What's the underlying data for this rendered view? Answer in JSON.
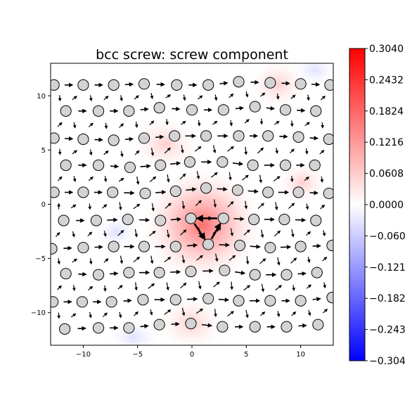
{
  "chart_data": {
    "type": "scatter",
    "title": "bcc screw: screw component",
    "xlabel": "",
    "ylabel": "",
    "xlim": [
      -13,
      13
    ],
    "ylim": [
      -13,
      13
    ],
    "x_ticks": [
      "−10",
      "−5",
      "0",
      "5",
      "10"
    ],
    "x_tick_values": [
      -10,
      -5,
      0,
      5,
      10
    ],
    "y_ticks": [
      "10",
      "5",
      "0",
      "−5",
      "−10"
    ],
    "y_tick_values": [
      10,
      5,
      0,
      -5,
      -10
    ],
    "colorbar": {
      "cmap": "bwr",
      "min": -0.304,
      "max": 0.304,
      "tick_labels": [
        "0.3040",
        "0.2432",
        "0.1824",
        "0.1216",
        "0.0608",
        "0.0000",
        "−0.0608",
        "−0.1216",
        "−0.1824",
        "−0.2432",
        "−0.3040"
      ],
      "tick_values": [
        0.304,
        0.2432,
        0.1824,
        0.1216,
        0.0608,
        0.0,
        -0.0608,
        -0.1216,
        -0.1824,
        -0.2432,
        -0.304
      ],
      "colors": {
        "low": "#0000ff",
        "mid": "#ffffff",
        "high": "#ff0000"
      }
    },
    "atoms": {
      "marker_color": "#d3d3d3",
      "edge_color": "#000000",
      "points": [
        [
          -12.7,
          11.0
        ],
        [
          -10.0,
          11.0
        ],
        [
          -7.2,
          11.0
        ],
        [
          -4.4,
          11.1
        ],
        [
          -1.4,
          11.0
        ],
        [
          1.5,
          11.0
        ],
        [
          4.3,
          11.3
        ],
        [
          7.2,
          11.2
        ],
        [
          10.0,
          11.1
        ],
        [
          12.7,
          11.0
        ],
        [
          -11.6,
          8.6
        ],
        [
          -8.6,
          8.6
        ],
        [
          -5.8,
          8.6
        ],
        [
          -3.0,
          8.9
        ],
        [
          0.0,
          8.7
        ],
        [
          2.9,
          8.7
        ],
        [
          5.8,
          9.0
        ],
        [
          8.6,
          8.7
        ],
        [
          11.4,
          8.6
        ],
        [
          -12.7,
          6.1
        ],
        [
          -10.0,
          6.0
        ],
        [
          -7.2,
          5.9
        ],
        [
          -4.4,
          6.1
        ],
        [
          -1.6,
          6.3
        ],
        [
          1.3,
          6.3
        ],
        [
          4.3,
          6.3
        ],
        [
          7.0,
          6.3
        ],
        [
          9.8,
          6.2
        ],
        [
          12.6,
          6.0
        ],
        [
          -11.6,
          3.6
        ],
        [
          -8.6,
          3.6
        ],
        [
          -5.7,
          3.4
        ],
        [
          -2.9,
          3.6
        ],
        [
          -0.2,
          3.9
        ],
        [
          2.8,
          3.9
        ],
        [
          5.6,
          3.6
        ],
        [
          8.6,
          3.6
        ],
        [
          11.3,
          3.6
        ],
        [
          -12.7,
          1.1
        ],
        [
          -10.0,
          1.1
        ],
        [
          -7.3,
          1.1
        ],
        [
          -4.3,
          1.0
        ],
        [
          -1.5,
          1.2
        ],
        [
          1.3,
          1.5
        ],
        [
          4.2,
          1.3
        ],
        [
          7.0,
          1.1
        ],
        [
          9.8,
          1.1
        ],
        [
          12.6,
          1.0
        ],
        [
          -11.8,
          -1.5
        ],
        [
          -8.8,
          -1.5
        ],
        [
          -5.9,
          -1.4
        ],
        [
          -2.9,
          -1.5
        ],
        [
          -0.1,
          -1.3
        ],
        [
          2.9,
          -1.3
        ],
        [
          5.7,
          -1.4
        ],
        [
          8.5,
          -1.4
        ],
        [
          11.4,
          -1.5
        ],
        [
          -12.9,
          -4.1
        ],
        [
          -10.0,
          -4.0
        ],
        [
          -7.2,
          -3.9
        ],
        [
          -4.4,
          -3.9
        ],
        [
          -1.5,
          -3.9
        ],
        [
          1.5,
          -3.7
        ],
        [
          4.4,
          -3.8
        ],
        [
          7.2,
          -4.0
        ],
        [
          10.0,
          -3.9
        ],
        [
          12.9,
          -3.8
        ],
        [
          -11.6,
          -6.4
        ],
        [
          -8.6,
          -6.5
        ],
        [
          -5.8,
          -6.3
        ],
        [
          -3.0,
          -6.3
        ],
        [
          -0.1,
          -6.2
        ],
        [
          3.0,
          -6.1
        ],
        [
          5.8,
          -6.5
        ],
        [
          8.7,
          -6.5
        ],
        [
          11.5,
          -6.3
        ],
        [
          -12.8,
          -9.0
        ],
        [
          -10.1,
          -9.0
        ],
        [
          -7.4,
          -9.0
        ],
        [
          -4.5,
          -8.8
        ],
        [
          -1.5,
          -8.8
        ],
        [
          1.5,
          -8.7
        ],
        [
          4.3,
          -8.9
        ],
        [
          7.2,
          -8.9
        ],
        [
          10.0,
          -8.9
        ],
        [
          12.9,
          -8.6
        ],
        [
          -11.7,
          -11.5
        ],
        [
          -8.6,
          -11.4
        ],
        [
          -5.8,
          -11.4
        ],
        [
          -3.0,
          -11.1
        ],
        [
          -0.1,
          -11.0
        ],
        [
          2.8,
          -11.3
        ],
        [
          5.8,
          -11.3
        ],
        [
          8.7,
          -11.3
        ],
        [
          11.6,
          -11.1
        ]
      ],
      "core_triangle": [
        [
          -0.1,
          -1.3
        ],
        [
          2.9,
          -1.3
        ],
        [
          1.5,
          -3.7
        ]
      ]
    }
  }
}
